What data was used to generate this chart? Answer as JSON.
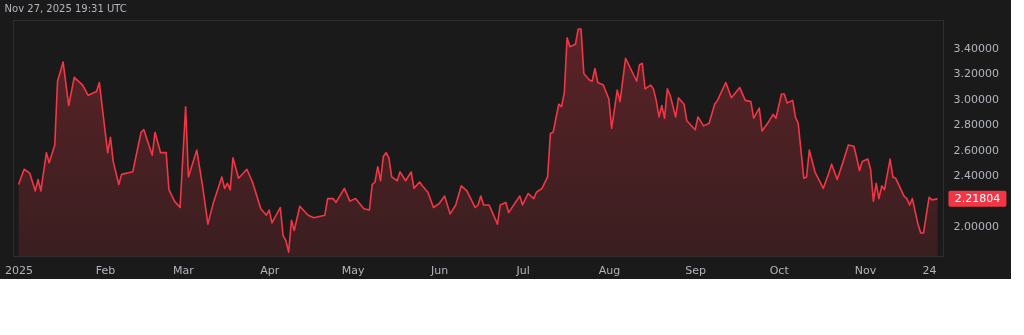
{
  "chart_data": {
    "type": "area",
    "title": "Nov 27, 2025 19:31 UTC",
    "x": [
      "2025-01-01",
      "2025-01-03",
      "2025-01-05",
      "2025-01-07",
      "2025-01-08",
      "2025-01-09",
      "2025-01-11",
      "2025-01-12",
      "2025-01-14",
      "2025-01-15",
      "2025-01-17",
      "2025-01-19",
      "2025-01-21",
      "2025-01-24",
      "2025-01-26",
      "2025-01-29",
      "2025-01-30",
      "2025-02-02",
      "2025-02-03",
      "2025-02-04",
      "2025-02-06",
      "2025-02-07",
      "2025-02-11",
      "2025-02-14",
      "2025-02-15",
      "2025-02-18",
      "2025-02-19",
      "2025-02-21",
      "2025-02-23",
      "2025-02-24",
      "2025-02-26",
      "2025-02-28",
      "2025-03-02",
      "2025-03-03",
      "2025-03-06",
      "2025-03-08",
      "2025-03-10",
      "2025-03-12",
      "2025-03-15",
      "2025-03-16",
      "2025-03-17",
      "2025-03-18",
      "2025-03-19",
      "2025-03-21",
      "2025-03-24",
      "2025-03-26",
      "2025-03-29",
      "2025-03-31",
      "2025-04-01",
      "2025-04-02",
      "2025-04-05",
      "2025-04-06",
      "2025-04-07",
      "2025-04-08",
      "2025-04-09",
      "2025-04-10",
      "2025-04-12",
      "2025-04-15",
      "2025-04-17",
      "2025-04-21",
      "2025-04-22",
      "2025-04-24",
      "2025-04-25",
      "2025-04-28",
      "2025-04-30",
      "2025-05-02",
      "2025-05-05",
      "2025-05-07",
      "2025-05-08",
      "2025-05-09",
      "2025-05-10",
      "2025-05-11",
      "2025-05-12",
      "2025-05-13",
      "2025-05-14",
      "2025-05-15",
      "2025-05-17",
      "2025-05-18",
      "2025-05-20",
      "2025-05-22",
      "2025-05-23",
      "2025-05-25",
      "2025-05-26",
      "2025-05-28",
      "2025-05-30",
      "2025-06-01",
      "2025-06-03",
      "2025-06-05",
      "2025-06-07",
      "2025-06-09",
      "2025-06-11",
      "2025-06-14",
      "2025-06-15",
      "2025-06-16",
      "2025-06-17",
      "2025-06-19",
      "2025-06-22",
      "2025-06-23",
      "2025-06-25",
      "2025-06-26",
      "2025-06-30",
      "2025-07-01",
      "2025-07-03",
      "2025-07-05",
      "2025-07-06",
      "2025-07-08",
      "2025-07-10",
      "2025-07-11",
      "2025-07-12",
      "2025-07-14",
      "2025-07-15",
      "2025-07-16",
      "2025-07-17",
      "2025-07-18",
      "2025-07-20",
      "2025-07-21",
      "2025-07-22",
      "2025-07-23",
      "2025-07-25",
      "2025-07-26",
      "2025-07-27",
      "2025-07-28",
      "2025-07-30",
      "2025-08-01",
      "2025-08-02",
      "2025-08-04",
      "2025-08-05",
      "2025-08-07",
      "2025-08-11",
      "2025-08-12",
      "2025-08-13",
      "2025-08-14",
      "2025-08-16",
      "2025-08-17",
      "2025-08-18",
      "2025-08-19",
      "2025-08-20",
      "2025-08-21",
      "2025-08-22",
      "2025-08-23",
      "2025-08-25",
      "2025-08-26",
      "2025-08-28",
      "2025-08-29",
      "2025-09-01",
      "2025-09-02",
      "2025-09-04",
      "2025-09-06",
      "2025-09-08",
      "2025-09-09",
      "2025-09-12",
      "2025-09-14",
      "2025-09-17",
      "2025-09-19",
      "2025-09-21",
      "2025-09-22",
      "2025-09-24",
      "2025-09-25",
      "2025-09-27",
      "2025-09-29",
      "2025-09-30",
      "2025-10-02",
      "2025-10-03",
      "2025-10-04",
      "2025-10-06",
      "2025-10-07",
      "2025-10-08",
      "2025-10-10",
      "2025-10-11",
      "2025-10-12",
      "2025-10-14",
      "2025-10-17",
      "2025-10-19",
      "2025-10-20",
      "2025-10-22",
      "2025-10-24",
      "2025-10-26",
      "2025-10-28",
      "2025-10-29",
      "2025-10-30",
      "2025-10-31",
      "2025-11-02",
      "2025-11-03",
      "2025-11-04",
      "2025-11-05",
      "2025-11-06",
      "2025-11-07",
      "2025-11-08",
      "2025-11-10",
      "2025-11-11",
      "2025-11-12",
      "2025-11-15",
      "2025-11-16",
      "2025-11-17",
      "2025-11-18",
      "2025-11-20",
      "2025-11-21",
      "2025-11-22",
      "2025-11-24",
      "2025-11-25",
      "2025-11-27"
    ],
    "series": [
      {
        "color": "#f23645",
        "values": [
          2.33,
          2.45,
          2.42,
          2.28,
          2.37,
          2.28,
          2.58,
          2.5,
          2.64,
          3.14,
          3.29,
          2.95,
          3.17,
          3.11,
          3.03,
          3.06,
          3.13,
          2.58,
          2.7,
          2.51,
          2.33,
          2.41,
          2.43,
          2.74,
          2.76,
          2.56,
          2.74,
          2.58,
          2.58,
          2.29,
          2.2,
          2.15,
          2.94,
          2.39,
          2.6,
          2.33,
          2.02,
          2.19,
          2.39,
          2.3,
          2.34,
          2.29,
          2.54,
          2.38,
          2.45,
          2.35,
          2.14,
          2.09,
          2.13,
          2.03,
          2.15,
          1.93,
          1.89,
          1.8,
          2.05,
          1.97,
          2.16,
          2.09,
          2.07,
          2.09,
          2.22,
          2.22,
          2.19,
          2.3,
          2.2,
          2.22,
          2.14,
          2.13,
          2.33,
          2.35,
          2.47,
          2.36,
          2.55,
          2.58,
          2.54,
          2.39,
          2.36,
          2.43,
          2.36,
          2.43,
          2.3,
          2.35,
          2.32,
          2.27,
          2.15,
          2.18,
          2.24,
          2.1,
          2.17,
          2.32,
          2.28,
          2.15,
          2.17,
          2.24,
          2.17,
          2.17,
          2.02,
          2.17,
          2.19,
          2.11,
          2.24,
          2.17,
          2.26,
          2.22,
          2.27,
          2.3,
          2.39,
          2.73,
          2.74,
          2.96,
          2.94,
          3.05,
          3.48,
          3.41,
          3.43,
          3.55,
          3.55,
          3.2,
          3.15,
          3.14,
          3.24,
          3.13,
          3.11,
          3.0,
          2.77,
          3.07,
          2.98,
          3.32,
          3.14,
          3.27,
          3.28,
          3.08,
          3.11,
          3.08,
          2.99,
          2.86,
          2.95,
          2.85,
          3.08,
          3.03,
          2.86,
          3.01,
          2.96,
          2.83,
          2.76,
          2.86,
          2.79,
          2.81,
          2.96,
          2.99,
          3.13,
          3.01,
          3.09,
          2.99,
          2.98,
          2.85,
          2.93,
          2.75,
          2.81,
          2.88,
          2.85,
          3.04,
          3.04,
          2.97,
          2.99,
          2.86,
          2.81,
          2.38,
          2.39,
          2.6,
          2.43,
          2.3,
          2.42,
          2.49,
          2.37,
          2.5,
          2.64,
          2.63,
          2.54,
          2.44,
          2.51,
          2.53,
          2.45,
          2.2,
          2.34,
          2.22,
          2.32,
          2.29,
          2.53,
          2.39,
          2.38,
          2.24,
          2.22,
          2.17,
          2.22,
          2.02,
          1.95,
          1.95,
          2.23,
          2.21,
          2.21804
        ]
      }
    ],
    "xlim": [
      "2024-12-30",
      "2025-11-29"
    ],
    "xticks": [
      {
        "value": "2025-01-01",
        "label": "2025"
      },
      {
        "value": "2025-02-01",
        "label": "Feb"
      },
      {
        "value": "2025-03-01",
        "label": "Mar"
      },
      {
        "value": "2025-04-01",
        "label": "Apr"
      },
      {
        "value": "2025-05-01",
        "label": "May"
      },
      {
        "value": "2025-06-01",
        "label": "Jun"
      },
      {
        "value": "2025-07-01",
        "label": "Jul"
      },
      {
        "value": "2025-08-01",
        "label": "Aug"
      },
      {
        "value": "2025-09-01",
        "label": "Sep"
      },
      {
        "value": "2025-10-01",
        "label": "Oct"
      },
      {
        "value": "2025-11-01",
        "label": "Nov"
      },
      {
        "value": "2025-11-24",
        "label": "24"
      }
    ],
    "ylim": [
      1.77,
      3.62
    ],
    "yticks": [
      {
        "value": 2.0,
        "label": "2.00000"
      },
      {
        "value": 2.4,
        "label": "2.40000"
      },
      {
        "value": 2.6,
        "label": "2.60000"
      },
      {
        "value": 2.8,
        "label": "2.80000"
      },
      {
        "value": 3.0,
        "label": "3.00000"
      },
      {
        "value": 3.2,
        "label": "3.20000"
      },
      {
        "value": 3.4,
        "label": "3.40000"
      }
    ],
    "annotations": [
      {
        "text": "2.21804",
        "x": "2025-11-27",
        "y": 2.21804
      }
    ],
    "grid": false
  }
}
